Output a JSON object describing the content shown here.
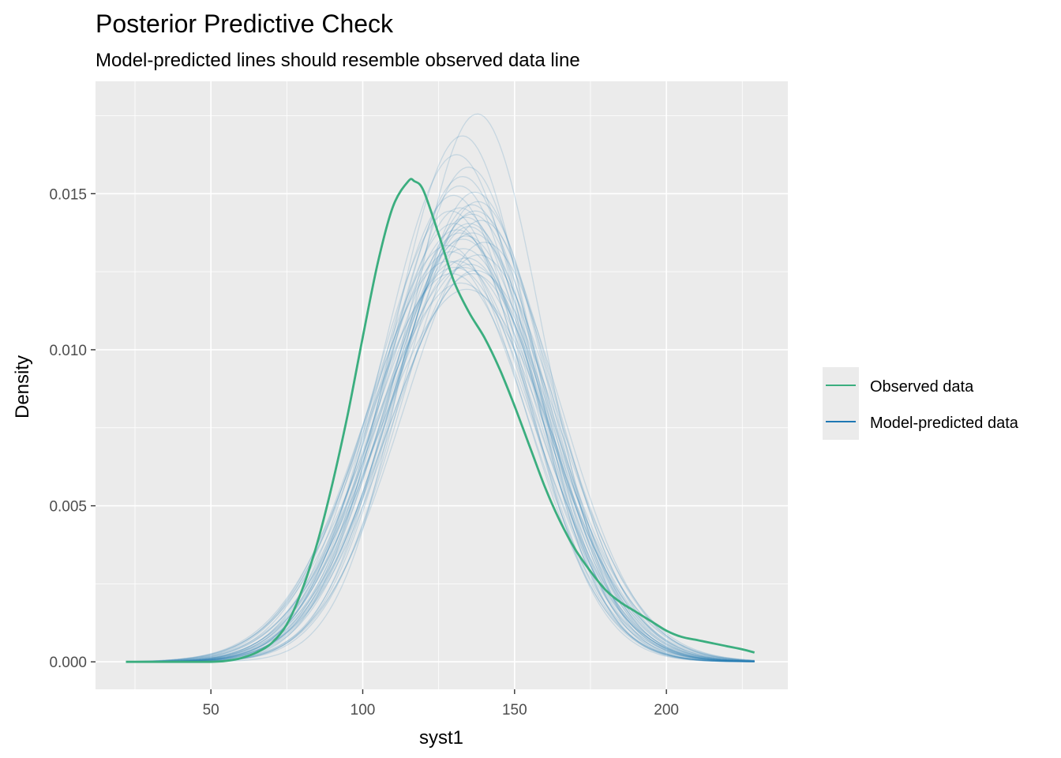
{
  "chart_data": {
    "type": "line",
    "title": "Posterior Predictive Check",
    "subtitle": "Model-predicted lines should resemble observed data line",
    "xlabel": "syst1",
    "ylabel": "Density",
    "xlim": [
      12,
      240
    ],
    "ylim": [
      -0.00088,
      0.0186
    ],
    "x_ticks": [
      50,
      100,
      150,
      200
    ],
    "x_tick_labels": [
      "50",
      "100",
      "150",
      "200"
    ],
    "y_ticks": [
      0,
      0.005,
      0.01,
      0.015
    ],
    "y_tick_labels": [
      "0.000",
      "0.005",
      "0.010",
      "0.015"
    ],
    "grid": true,
    "legend_position": "right",
    "colors": {
      "observed": "#3bae7f",
      "predicted": "#1f78b4",
      "panel_bg": "#ebebeb",
      "grid_major": "#ffffff"
    },
    "series": [
      {
        "name": "Observed data",
        "role": "observed",
        "x": [
          22,
          30,
          40,
          50,
          55,
          60,
          65,
          70,
          75,
          80,
          85,
          90,
          95,
          100,
          105,
          110,
          115,
          117,
          120,
          125,
          130,
          135,
          140,
          145,
          150,
          155,
          160,
          165,
          170,
          175,
          180,
          185,
          190,
          195,
          200,
          205,
          210,
          215,
          220,
          225,
          229
        ],
        "y": [
          0,
          0,
          0,
          0,
          3e-05,
          0.00012,
          0.0003,
          0.0006,
          0.0012,
          0.0023,
          0.0038,
          0.0057,
          0.0079,
          0.0104,
          0.0128,
          0.0146,
          0.0154,
          0.0154,
          0.0151,
          0.0137,
          0.0122,
          0.0112,
          0.0104,
          0.0094,
          0.0082,
          0.0069,
          0.0056,
          0.0045,
          0.0036,
          0.0029,
          0.0023,
          0.0019,
          0.0016,
          0.0013,
          0.001,
          0.0008,
          0.0007,
          0.0006,
          0.0005,
          0.0004,
          0.0003
        ]
      },
      {
        "name": "Model-predicted data",
        "role": "predicted",
        "draws": [
          {
            "mu": 127,
            "sd": 27,
            "peak": 0.0131
          },
          {
            "mu": 130,
            "sd": 26,
            "peak": 0.0137
          },
          {
            "mu": 132,
            "sd": 25,
            "peak": 0.0142
          },
          {
            "mu": 129,
            "sd": 27,
            "peak": 0.0128
          },
          {
            "mu": 134,
            "sd": 24,
            "peak": 0.0146
          },
          {
            "mu": 131,
            "sd": 26,
            "peak": 0.0135
          },
          {
            "mu": 128,
            "sd": 28,
            "peak": 0.0126
          },
          {
            "mu": 133,
            "sd": 25,
            "peak": 0.0139
          },
          {
            "mu": 136,
            "sd": 22,
            "peak": 0.0175
          },
          {
            "mu": 131,
            "sd": 23,
            "peak": 0.0168
          },
          {
            "mu": 129,
            "sd": 24,
            "peak": 0.0162
          },
          {
            "mu": 134,
            "sd": 27,
            "peak": 0.0124
          },
          {
            "mu": 126,
            "sd": 26,
            "peak": 0.0133
          },
          {
            "mu": 135,
            "sd": 26,
            "peak": 0.0144
          },
          {
            "mu": 130,
            "sd": 29,
            "peak": 0.0121
          },
          {
            "mu": 132,
            "sd": 27,
            "peak": 0.0129
          },
          {
            "mu": 137,
            "sd": 25,
            "peak": 0.0141
          },
          {
            "mu": 128,
            "sd": 25,
            "peak": 0.014
          },
          {
            "mu": 133,
            "sd": 28,
            "peak": 0.0127
          },
          {
            "mu": 131,
            "sd": 24,
            "peak": 0.0155
          },
          {
            "mu": 127,
            "sd": 28,
            "peak": 0.0124
          },
          {
            "mu": 135,
            "sd": 24,
            "peak": 0.015
          },
          {
            "mu": 130,
            "sd": 25,
            "peak": 0.0145
          },
          {
            "mu": 132,
            "sd": 29,
            "peak": 0.0119
          },
          {
            "mu": 138,
            "sd": 26,
            "peak": 0.0134
          },
          {
            "mu": 129,
            "sd": 26,
            "peak": 0.0138
          },
          {
            "mu": 134,
            "sd": 25,
            "peak": 0.0143
          },
          {
            "mu": 126,
            "sd": 27,
            "peak": 0.0128
          },
          {
            "mu": 133,
            "sd": 23,
            "peak": 0.0158
          },
          {
            "mu": 131,
            "sd": 27,
            "peak": 0.0132
          },
          {
            "mu": 136,
            "sd": 27,
            "peak": 0.013
          },
          {
            "mu": 128,
            "sd": 24,
            "peak": 0.0149
          },
          {
            "mu": 132,
            "sd": 26,
            "peak": 0.0136
          },
          {
            "mu": 135,
            "sd": 28,
            "peak": 0.0125
          },
          {
            "mu": 130,
            "sd": 24,
            "peak": 0.0152
          },
          {
            "mu": 133,
            "sd": 26,
            "peak": 0.014
          },
          {
            "mu": 127,
            "sd": 25,
            "peak": 0.0144
          },
          {
            "mu": 134,
            "sd": 26,
            "peak": 0.0137
          },
          {
            "mu": 131,
            "sd": 28,
            "peak": 0.0126
          },
          {
            "mu": 136,
            "sd": 24,
            "peak": 0.0147
          }
        ]
      }
    ]
  }
}
